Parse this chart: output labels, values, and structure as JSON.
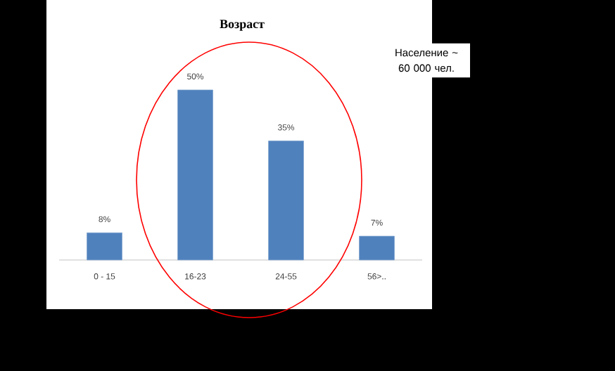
{
  "chart_data": {
    "type": "bar",
    "title": "Возраст",
    "categories": [
      "0 - 15",
      "16-23",
      "24-55",
      "56>.."
    ],
    "values": [
      8,
      50,
      35,
      7
    ],
    "value_labels": [
      "8%",
      "50%",
      "35%",
      "7%"
    ],
    "color": "#4f81bd",
    "annotations": [
      "Население ~ 60 000 чел."
    ]
  }
}
